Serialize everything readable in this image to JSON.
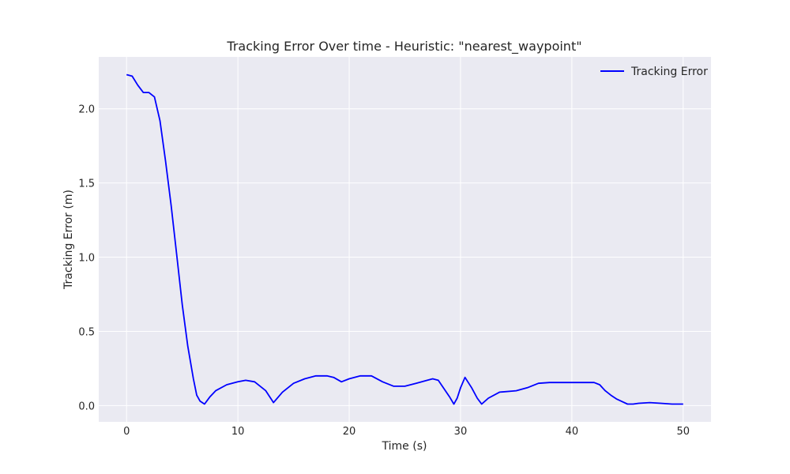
{
  "chart_data": {
    "type": "line",
    "title": "Tracking Error Over time - Heuristic: \"nearest_waypoint\"",
    "xlabel": "Time (s)",
    "ylabel": "Tracking Error (m)",
    "xlim": [
      -2.5,
      52.5
    ],
    "ylim": [
      -0.11,
      2.35
    ],
    "xticks": [
      0,
      10,
      20,
      30,
      40,
      50
    ],
    "yticks": [
      0.0,
      0.5,
      1.0,
      1.5,
      2.0
    ],
    "xtick_labels": [
      "0",
      "10",
      "20",
      "30",
      "40",
      "50"
    ],
    "ytick_labels": [
      "0.0",
      "0.5",
      "1.0",
      "1.5",
      "2.0"
    ],
    "grid": true,
    "legend_position": "top-right",
    "series": [
      {
        "name": "Tracking Error",
        "color": "#0000ff",
        "x": [
          0,
          0.5,
          1.0,
          1.5,
          2.0,
          2.5,
          3.0,
          3.5,
          4.0,
          4.5,
          5.0,
          5.5,
          6.0,
          6.3,
          6.6,
          7.0,
          7.5,
          8.0,
          9.0,
          10.0,
          10.7,
          11.5,
          12.5,
          13.2,
          14.0,
          15.0,
          16.0,
          17.0,
          18.0,
          18.6,
          19.3,
          20.0,
          21.0,
          22.0,
          23.0,
          24.0,
          25.0,
          26.0,
          27.0,
          27.5,
          28.0,
          29.0,
          29.4,
          29.7,
          30.0,
          30.4,
          31.0,
          31.5,
          31.9,
          32.5,
          33.5,
          35.0,
          36.0,
          37.0,
          38.0,
          40.0,
          41.0,
          42.0,
          42.5,
          43.0,
          43.5,
          44.0,
          45.0,
          45.5,
          46.0,
          47.0,
          48.0,
          49.0,
          50.0
        ],
        "y": [
          2.23,
          2.22,
          2.16,
          2.11,
          2.11,
          2.08,
          1.92,
          1.65,
          1.35,
          1.02,
          0.68,
          0.4,
          0.18,
          0.07,
          0.03,
          0.01,
          0.06,
          0.1,
          0.14,
          0.16,
          0.17,
          0.16,
          0.1,
          0.02,
          0.09,
          0.15,
          0.18,
          0.2,
          0.2,
          0.19,
          0.16,
          0.18,
          0.2,
          0.2,
          0.16,
          0.13,
          0.13,
          0.15,
          0.17,
          0.18,
          0.17,
          0.06,
          0.01,
          0.05,
          0.12,
          0.19,
          0.12,
          0.05,
          0.01,
          0.05,
          0.09,
          0.1,
          0.12,
          0.15,
          0.155,
          0.155,
          0.155,
          0.155,
          0.14,
          0.1,
          0.07,
          0.045,
          0.01,
          0.01,
          0.015,
          0.02,
          0.015,
          0.01,
          0.01
        ]
      }
    ]
  }
}
